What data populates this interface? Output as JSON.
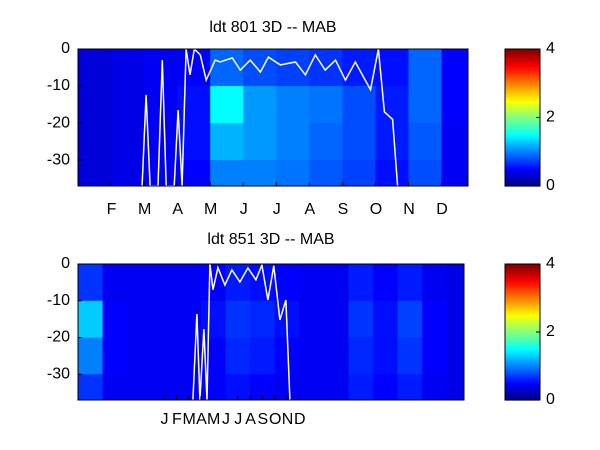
{
  "chart_data": [
    {
      "type": "heatmap",
      "title": "ldt  801 3D   -- MAB",
      "xlim": [
        0,
        11.8
      ],
      "xticks": [
        {
          "value": 1,
          "label": "F"
        },
        {
          "value": 2,
          "label": "M"
        },
        {
          "value": 3,
          "label": "A"
        },
        {
          "value": 4,
          "label": "M"
        },
        {
          "value": 5,
          "label": "J"
        },
        {
          "value": 6,
          "label": "J"
        },
        {
          "value": 7,
          "label": "A"
        },
        {
          "value": 8,
          "label": "S"
        },
        {
          "value": 9,
          "label": "O"
        },
        {
          "value": 10,
          "label": "N"
        },
        {
          "value": 11,
          "label": "D"
        }
      ],
      "ylim": [
        -37,
        0
      ],
      "yticks": [
        0,
        -10,
        -20,
        -30
      ],
      "xbins": [
        0,
        1,
        2,
        3,
        4,
        5,
        6,
        7,
        8,
        9,
        10,
        11,
        11.8
      ],
      "ybins": [
        0,
        -10,
        -20,
        -30,
        -37
      ],
      "z": [
        [
          0.35,
          0.4,
          0.45,
          0.5,
          0.9,
          0.8,
          0.75,
          0.7,
          0.6,
          0.55,
          0.9,
          0.5
        ],
        [
          0.35,
          0.4,
          0.45,
          0.55,
          1.5,
          1.1,
          1.0,
          0.95,
          0.8,
          0.6,
          0.9,
          0.5
        ],
        [
          0.35,
          0.4,
          0.45,
          0.55,
          1.2,
          1.1,
          1.0,
          0.9,
          0.8,
          0.6,
          0.85,
          0.45
        ],
        [
          0.35,
          0.4,
          0.45,
          0.5,
          1.0,
          1.0,
          0.95,
          0.85,
          0.75,
          0.55,
          0.8,
          0.45
        ]
      ],
      "clim": [
        0,
        4
      ],
      "cticks": [
        0,
        2,
        4
      ],
      "colormap": "jet",
      "line": {
        "color": "#ffffff",
        "x": [
          1.94,
          2.06,
          2.18,
          2.42,
          2.55,
          2.67,
          2.91,
          3.03,
          3.15,
          3.27,
          3.39,
          3.52,
          3.7,
          3.88,
          4.15,
          4.3,
          4.67,
          4.91,
          5.21,
          5.52,
          5.76,
          6.12,
          6.58,
          6.88,
          7.18,
          7.48,
          7.79,
          8.09,
          8.39,
          8.85,
          9.09,
          9.27,
          9.52,
          9.67
        ],
        "y": [
          -37,
          -12.4,
          -37,
          -37,
          -3,
          -37,
          -37,
          -16.5,
          -37,
          0,
          -7,
          0,
          -1.6,
          -8.4,
          -3,
          -3.5,
          -2.4,
          -5.7,
          -3,
          -6.2,
          -2.2,
          -4.3,
          -3.5,
          -7,
          -1.6,
          -5.7,
          -3,
          -8.4,
          -3.5,
          -11,
          0,
          -17,
          -19,
          -37
        ]
      }
    },
    {
      "type": "heatmap",
      "title": "ldt  851 3D   -- MAB",
      "xlim": [
        0,
        31.4
      ],
      "xticks": [
        {
          "value": 7,
          "label": "J"
        },
        {
          "value": 8,
          "label": "F"
        },
        {
          "value": 9,
          "label": "M"
        },
        {
          "value": 10,
          "label": "A"
        },
        {
          "value": 11,
          "label": "M"
        },
        {
          "value": 12,
          "label": "J"
        },
        {
          "value": 13,
          "label": "J"
        },
        {
          "value": 14,
          "label": "A"
        },
        {
          "value": 15,
          "label": "S"
        },
        {
          "value": 16,
          "label": "O"
        },
        {
          "value": 17,
          "label": "N"
        },
        {
          "value": 18,
          "label": "D"
        }
      ],
      "ylim": [
        -37,
        0
      ],
      "yticks": [
        0,
        -10,
        -20,
        -30
      ],
      "xbins": [
        0,
        2,
        4,
        6,
        8,
        10,
        12,
        14,
        16,
        18,
        20,
        22,
        24,
        26,
        28,
        30,
        31.4
      ],
      "ybins": [
        0,
        -10,
        -20,
        -30,
        -37
      ],
      "z": [
        [
          0.7,
          0.45,
          0.45,
          0.45,
          0.45,
          0.5,
          0.6,
          0.55,
          0.5,
          0.45,
          0.45,
          0.6,
          0.5,
          0.6,
          0.45,
          0.4
        ],
        [
          1.3,
          0.5,
          0.45,
          0.45,
          0.45,
          0.55,
          0.7,
          0.65,
          0.55,
          0.45,
          0.45,
          0.7,
          0.55,
          0.75,
          0.5,
          0.4
        ],
        [
          1.0,
          0.5,
          0.45,
          0.45,
          0.45,
          0.5,
          0.65,
          0.6,
          0.5,
          0.45,
          0.45,
          0.65,
          0.55,
          0.7,
          0.5,
          0.4
        ],
        [
          0.7,
          0.45,
          0.45,
          0.45,
          0.45,
          0.5,
          0.55,
          0.5,
          0.45,
          0.45,
          0.45,
          0.6,
          0.5,
          0.6,
          0.45,
          0.4
        ]
      ],
      "clim": [
        0,
        4
      ],
      "cticks": [
        0,
        2,
        4
      ],
      "colormap": "jet",
      "line": {
        "color": "#ffffff",
        "x": [
          9.35,
          9.67,
          9.92,
          10.24,
          10.49,
          10.73,
          10.98,
          11.38,
          11.95,
          12.52,
          13.17,
          13.82,
          14.47,
          14.96,
          15.45,
          15.93,
          16.42,
          16.91,
          17.24
        ],
        "y": [
          -37,
          -13.6,
          -37,
          -17.7,
          -37,
          0,
          -7,
          -1,
          -5.7,
          -1.6,
          -4.9,
          -1.1,
          -4.3,
          -0.3,
          -9.8,
          -0.5,
          -15.2,
          -9.8,
          -37
        ]
      }
    }
  ]
}
